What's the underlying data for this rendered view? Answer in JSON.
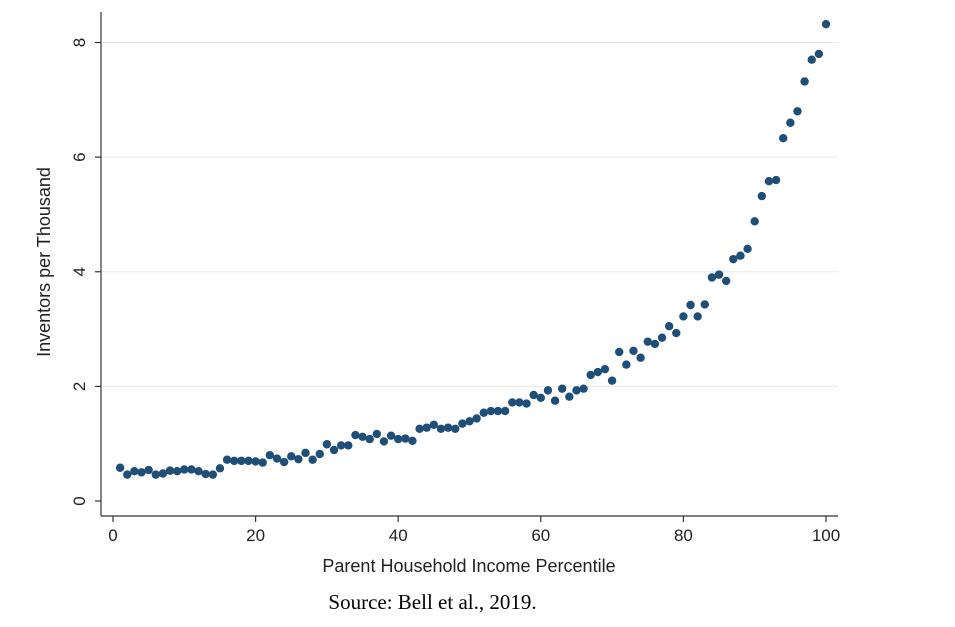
{
  "chart_data": {
    "type": "scatter",
    "title": "",
    "xlabel": "Parent Household Income Percentile",
    "ylabel": "Inventors per Thousand",
    "xlim": [
      0,
      100
    ],
    "ylim": [
      0,
      8.3
    ],
    "xticks": [
      0,
      20,
      40,
      60,
      80,
      100
    ],
    "yticks": [
      0,
      2,
      4,
      6,
      8
    ],
    "grid": "horizontal",
    "legend": "none",
    "marker_color": "#1f4e79",
    "x": [
      1,
      2,
      3,
      4,
      5,
      6,
      7,
      8,
      9,
      10,
      11,
      12,
      13,
      14,
      15,
      16,
      17,
      18,
      19,
      20,
      21,
      22,
      23,
      24,
      25,
      26,
      27,
      28,
      29,
      30,
      31,
      32,
      33,
      34,
      35,
      36,
      37,
      38,
      39,
      40,
      41,
      42,
      43,
      44,
      45,
      46,
      47,
      48,
      49,
      50,
      51,
      52,
      53,
      54,
      55,
      56,
      57,
      58,
      59,
      60,
      61,
      62,
      63,
      64,
      65,
      66,
      67,
      68,
      69,
      70,
      71,
      72,
      73,
      74,
      75,
      76,
      77,
      78,
      79,
      80,
      81,
      82,
      83,
      84,
      85,
      86,
      87,
      88,
      89,
      90,
      91,
      92,
      93,
      94,
      95,
      96,
      97,
      98,
      99,
      100
    ],
    "y": [
      0.58,
      0.46,
      0.52,
      0.5,
      0.54,
      0.46,
      0.48,
      0.53,
      0.52,
      0.55,
      0.55,
      0.52,
      0.47,
      0.46,
      0.57,
      0.72,
      0.7,
      0.7,
      0.7,
      0.69,
      0.67,
      0.8,
      0.74,
      0.68,
      0.78,
      0.73,
      0.84,
      0.72,
      0.82,
      0.99,
      0.89,
      0.97,
      0.97,
      1.15,
      1.12,
      1.08,
      1.17,
      1.04,
      1.14,
      1.08,
      1.09,
      1.05,
      1.26,
      1.28,
      1.33,
      1.26,
      1.28,
      1.26,
      1.35,
      1.39,
      1.44,
      1.54,
      1.57,
      1.57,
      1.57,
      1.72,
      1.72,
      1.7,
      1.85,
      1.8,
      1.93,
      1.75,
      1.96,
      1.82,
      1.93,
      1.96,
      2.2,
      2.25,
      2.3,
      2.1,
      2.6,
      2.38,
      2.62,
      2.5,
      2.78,
      2.74,
      2.85,
      3.05,
      2.93,
      3.22,
      3.42,
      3.22,
      3.43,
      3.9,
      3.95,
      3.84,
      4.22,
      4.28,
      4.4,
      4.88,
      5.32,
      5.58,
      5.6,
      6.33,
      6.6,
      6.8,
      7.32,
      7.7,
      7.8,
      8.32
    ]
  },
  "source": "Source:  Bell et al., 2019."
}
